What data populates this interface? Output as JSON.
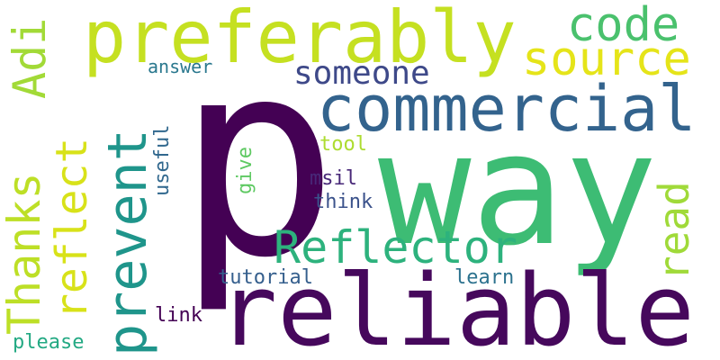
{
  "words": {
    "p": {
      "text": "p",
      "color": "#440154"
    },
    "way": {
      "text": "way",
      "color": "#3dbc74"
    },
    "reliable": {
      "text": "reliable",
      "color": "#46085c"
    },
    "commercial": {
      "text": "commercial",
      "color": "#33638d"
    },
    "preferably": {
      "text": "preferably",
      "color": "#c5e021"
    },
    "prevent": {
      "text": "prevent",
      "color": "#1f958b"
    },
    "Reflector": {
      "text": "Reflector",
      "color": "#2db27d"
    },
    "Thanks": {
      "text": "Thanks",
      "color": "#bddf26"
    },
    "Adi": {
      "text": "Adi",
      "color": "#a2da37"
    },
    "reflect": {
      "text": "reflect",
      "color": "#d8e219"
    },
    "source": {
      "text": "source",
      "color": "#e5e419"
    },
    "code": {
      "text": "code",
      "color": "#4ac16d"
    },
    "someone": {
      "text": "someone",
      "color": "#3e4989"
    },
    "read": {
      "text": "read",
      "color": "#a0da39"
    },
    "answer": {
      "text": "answer",
      "color": "#2a788e"
    },
    "useful": {
      "text": "useful",
      "color": "#31688e"
    },
    "tool": {
      "text": "tool",
      "color": "#addc30"
    },
    "give": {
      "text": "give",
      "color": "#5ec962"
    },
    "msil": {
      "text": "msil",
      "color": "#482878"
    },
    "think": {
      "text": "think",
      "color": "#3b528b"
    },
    "tutorial": {
      "text": "tutorial",
      "color": "#355f8d"
    },
    "learn": {
      "text": "learn",
      "color": "#2c728e"
    },
    "link": {
      "text": "link",
      "color": "#440154"
    },
    "please": {
      "text": "please",
      "color": "#23a983"
    }
  }
}
